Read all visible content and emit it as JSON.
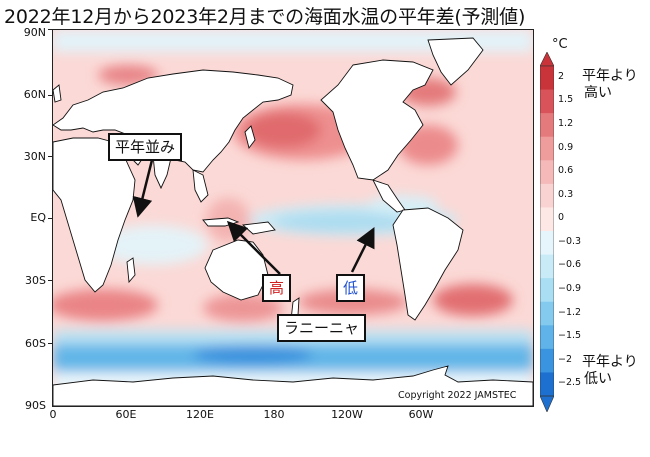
{
  "title": "2022年12月から2023年2月までの海面水温の平年差(予測値)",
  "map": {
    "lat_labels": [
      "90N",
      "60N",
      "30N",
      "EQ",
      "30S",
      "60S",
      "90S"
    ],
    "lon_labels": [
      "0",
      "60E",
      "120E",
      "180",
      "120W",
      "60W"
    ],
    "copyright": "Copyright 2022  JAMSTEC"
  },
  "colorbar": {
    "unit": "°C",
    "ticks": [
      "2",
      "1.5",
      "1.2",
      "0.9",
      "0.6",
      "0.3",
      "0",
      "−0.3",
      "−0.6",
      "−0.9",
      "−1.2",
      "−1.5",
      "−2",
      "−2.5"
    ],
    "colors": [
      "#c8343a",
      "#d9545a",
      "#e57a7c",
      "#ee9c9c",
      "#f4b9b8",
      "#f9d3d1",
      "#fde8e6",
      "#e6f5fb",
      "#c9ebf7",
      "#a9def3",
      "#84caee",
      "#5fb3e8",
      "#3b94df",
      "#1e70d0"
    ],
    "top_note": [
      "平年より",
      "高い"
    ],
    "bottom_note": [
      "平年より",
      "低い"
    ]
  },
  "annotations": {
    "normal": "平年並み",
    "high": "高",
    "low": "低",
    "lanina": "ラニーニャ"
  }
}
